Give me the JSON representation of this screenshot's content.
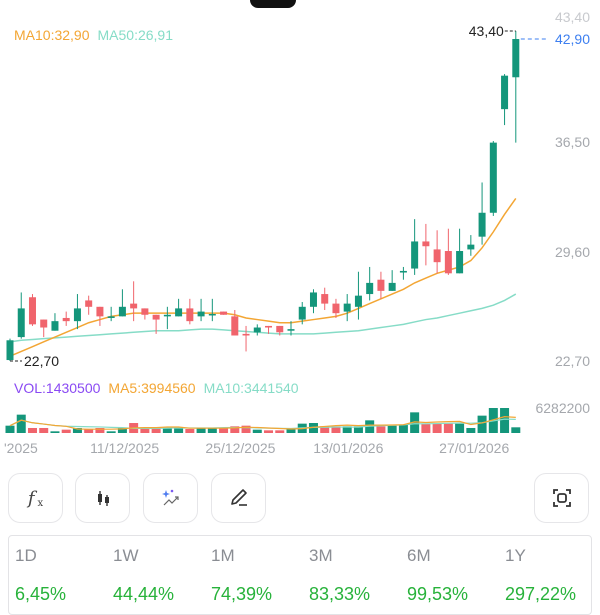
{
  "chart_data": {
    "type": "candlestick",
    "price_axis": {
      "ticks": [
        "43,40",
        "36,50",
        "29,60",
        "22,70"
      ],
      "tick_values": [
        43.4,
        36.5,
        29.6,
        22.7
      ]
    },
    "high_label": "43,40",
    "low_label": "22,70",
    "last_price_label": "42,90",
    "x_tick_labels": [
      "'2025",
      "11/12/2025",
      "25/12/2025",
      "13/01/2026",
      "27/01/2026"
    ],
    "x_tick_index": [
      0.8,
      10.2,
      20.5,
      30.1,
      41.3
    ],
    "ohlc": [
      [
        22.76,
        24.1,
        22.7,
        24.0
      ],
      [
        24.2,
        27.0,
        24.1,
        26.0
      ],
      [
        26.7,
        26.9,
        24.9,
        25.0
      ],
      [
        25.3,
        25.3,
        24.2,
        24.8
      ],
      [
        24.6,
        25.7,
        24.6,
        25.2
      ],
      [
        25.4,
        25.8,
        24.9,
        25.2
      ],
      [
        25.2,
        26.9,
        24.7,
        26.0
      ],
      [
        26.5,
        26.8,
        25.6,
        26.1
      ],
      [
        26.1,
        26.1,
        24.9,
        25.5
      ],
      [
        25.4,
        26.1,
        25.2,
        25.5
      ],
      [
        25.5,
        27.2,
        25.5,
        26.1
      ],
      [
        26.3,
        27.7,
        25.2,
        26.0
      ],
      [
        26.0,
        26.0,
        25.3,
        25.6
      ],
      [
        25.6,
        25.6,
        24.4,
        25.3
      ],
      [
        25.5,
        26.1,
        24.7,
        25.6
      ],
      [
        25.5,
        26.6,
        25.5,
        26.0
      ],
      [
        26.0,
        26.6,
        25.0,
        25.2
      ],
      [
        25.5,
        26.6,
        25.2,
        25.8
      ],
      [
        25.6,
        26.6,
        25.2,
        25.65
      ],
      [
        25.8,
        25.8,
        25.6,
        25.6
      ],
      [
        25.5,
        25.9,
        24.3,
        24.3
      ],
      [
        24.4,
        24.9,
        23.3,
        24.3
      ],
      [
        24.5,
        25.0,
        24.3,
        24.8
      ],
      [
        24.9,
        24.9,
        24.4,
        24.8
      ],
      [
        24.9,
        24.9,
        24.3,
        24.5
      ],
      [
        24.6,
        25.2,
        24.3,
        24.7
      ],
      [
        25.3,
        26.4,
        25.0,
        26.1
      ],
      [
        26.1,
        27.2,
        25.7,
        27.0
      ],
      [
        26.9,
        27.3,
        25.9,
        26.3
      ],
      [
        26.3,
        26.6,
        25.4,
        25.7
      ],
      [
        25.8,
        26.9,
        25.2,
        26.3
      ],
      [
        26.1,
        28.3,
        25.3,
        26.8
      ],
      [
        26.9,
        28.6,
        26.5,
        27.6
      ],
      [
        27.8,
        28.3,
        26.6,
        27.1
      ],
      [
        27.1,
        28.4,
        27.1,
        27.6
      ],
      [
        28.25,
        28.6,
        27.8,
        28.35
      ],
      [
        28.5,
        31.6,
        28.1,
        30.2
      ],
      [
        30.2,
        31.3,
        28.7,
        29.9
      ],
      [
        29.7,
        30.9,
        28.2,
        28.9
      ],
      [
        29.6,
        31.0,
        28.1,
        28.2
      ],
      [
        28.2,
        31.0,
        28.2,
        29.6
      ],
      [
        29.7,
        30.6,
        29.3,
        30.0
      ],
      [
        30.5,
        33.9,
        30.0,
        32.0
      ],
      [
        32.0,
        36.5,
        31.8,
        36.4
      ],
      [
        38.5,
        40.7,
        37.5,
        40.6
      ],
      [
        40.5,
        43.4,
        36.4,
        42.9
      ]
    ],
    "ma10": [
      23.0,
      23.3,
      23.6,
      23.9,
      24.2,
      24.5,
      24.8,
      25.1,
      25.3,
      25.5,
      25.6,
      25.7,
      25.7,
      25.7,
      25.7,
      25.7,
      25.7,
      25.7,
      25.7,
      25.7,
      25.6,
      25.4,
      25.3,
      25.2,
      25.1,
      25.1,
      25.2,
      25.3,
      25.4,
      25.5,
      25.7,
      26.0,
      26.3,
      26.6,
      26.9,
      27.2,
      27.6,
      27.9,
      28.2,
      28.4,
      28.6,
      29.0,
      29.8,
      30.8,
      31.9,
      32.9
    ],
    "ma50": [
      23.9,
      24.0,
      24.05,
      24.1,
      24.15,
      24.2,
      24.25,
      24.3,
      24.35,
      24.4,
      24.45,
      24.5,
      24.55,
      24.6,
      24.6,
      24.6,
      24.65,
      24.7,
      24.7,
      24.65,
      24.6,
      24.55,
      24.5,
      24.45,
      24.4,
      24.4,
      24.4,
      24.4,
      24.45,
      24.5,
      24.55,
      24.6,
      24.7,
      24.8,
      24.9,
      25.0,
      25.15,
      25.3,
      25.4,
      25.55,
      25.7,
      25.85,
      26.0,
      26.2,
      26.5,
      26.9
    ],
    "volume": [
      1840000,
      4610000,
      1260000,
      1260000,
      420000,
      840000,
      1260000,
      1010000,
      1260000,
      420000,
      1260000,
      2510000,
      1260000,
      1260000,
      1260000,
      1260000,
      1010000,
      1260000,
      1260000,
      1260000,
      1680000,
      1840000,
      840000,
      670000,
      670000,
      1010000,
      2350000,
      2510000,
      1680000,
      1680000,
      1680000,
      1680000,
      3180000,
      1680000,
      1840000,
      2090000,
      5190000,
      2350000,
      2350000,
      2350000,
      2350000,
      1260000,
      4360000,
      6280000,
      6280000,
      1430500
    ],
    "volume_max_label": "6282200",
    "colors": {
      "up": "#14967b",
      "down": "#f0646c",
      "ma10": "#f3a634",
      "ma50": "#86dcc7",
      "last": "#3d7ff0"
    }
  },
  "legend": {
    "ma10": "MA10:32,90",
    "ma50": "MA50:26,91"
  },
  "vol_legend": {
    "vol": "VOL:1430500",
    "ma5": "MA5:3994560",
    "ma10": "MA10:3441540"
  },
  "toolbar": {
    "indicators": "f",
    "indicators_sub": "x",
    "icons": [
      "function-icon",
      "candlestick-icon",
      "ai-trend-icon",
      "pencil-icon",
      "fullscreen-icon"
    ]
  },
  "stats": [
    {
      "period": "1D",
      "value": "6,45%"
    },
    {
      "period": "1W",
      "value": "44,44%"
    },
    {
      "period": "1M",
      "value": "74,39%"
    },
    {
      "period": "3M",
      "value": "83,33%"
    },
    {
      "period": "6M",
      "value": "99,53%"
    },
    {
      "period": "1Y",
      "value": "297,22%"
    }
  ]
}
